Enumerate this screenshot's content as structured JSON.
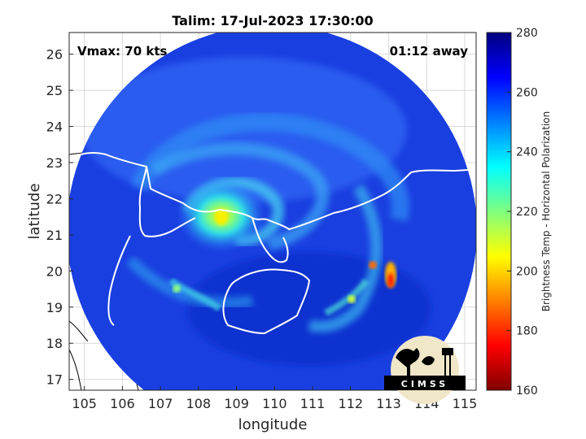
{
  "title": "Talim: 17-Jul-2023 17:30:00",
  "vmax_label": "Vmax: 70 kts",
  "time_away_label": "01:12 away",
  "axes": {
    "xlabel": "longitude",
    "ylabel": "latitude",
    "xticks": [
      "105",
      "106",
      "107",
      "108",
      "109",
      "110",
      "111",
      "112",
      "113",
      "114",
      "115"
    ],
    "yticks": [
      "17",
      "18",
      "19",
      "20",
      "21",
      "22",
      "23",
      "24",
      "25",
      "26"
    ],
    "xlim": [
      104.6,
      115.3
    ],
    "ylim": [
      16.7,
      26.6
    ]
  },
  "colorbar": {
    "label": "Brightness Temp - Horizontal Polarization",
    "ticks": [
      "160",
      "180",
      "200",
      "220",
      "240",
      "260",
      "280"
    ],
    "range": [
      160,
      280
    ],
    "colormap": "jet"
  },
  "storm_center": {
    "lon": 108.8,
    "lat": 21.5
  },
  "logo": {
    "text": "CIMSS"
  }
}
